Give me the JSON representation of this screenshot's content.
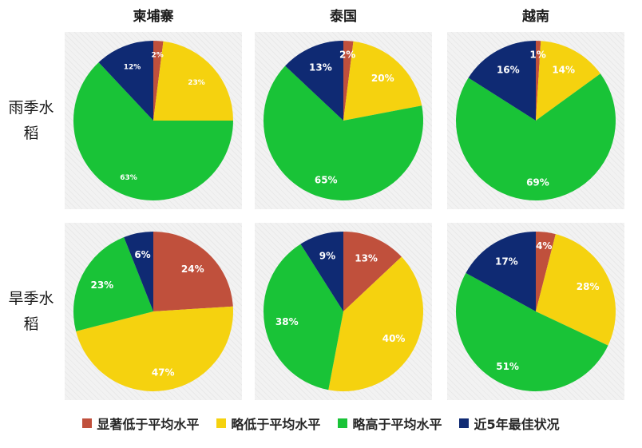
{
  "colors": {
    "significantly_below": "#c0503c",
    "slightly_below": "#f5d20f",
    "slightly_above": "#19c337",
    "best_5yr": "#0f2a73"
  },
  "legend": [
    "显著低于平均水平",
    "略低于平均水平",
    "略高于平均水平",
    "近5年最佳状况"
  ],
  "columns": [
    "柬埔寨",
    "泰国",
    "越南"
  ],
  "rows": [
    "雨季水稻",
    "旱季水稻"
  ],
  "chart_data": [
    {
      "type": "pie",
      "country": "柬埔寨",
      "season": "雨季水稻",
      "labels": [
        "显著低于平均水平",
        "略低于平均水平",
        "略高于平均水平",
        "近5年最佳状况"
      ],
      "values": [
        2,
        23,
        63,
        12
      ]
    },
    {
      "type": "pie",
      "country": "泰国",
      "season": "雨季水稻",
      "labels": [
        "显著低于平均水平",
        "略低于平均水平",
        "略高于平均水平",
        "近5年最佳状况"
      ],
      "values": [
        2,
        20,
        65,
        13
      ]
    },
    {
      "type": "pie",
      "country": "越南",
      "season": "雨季水稻",
      "labels": [
        "显著低于平均水平",
        "略低于平均水平",
        "略高于平均水平",
        "近5年最佳状况"
      ],
      "values": [
        1,
        14,
        69,
        16
      ]
    },
    {
      "type": "pie",
      "country": "柬埔寨",
      "season": "旱季水稻",
      "labels": [
        "显著低于平均水平",
        "略低于平均水平",
        "略高于平均水平",
        "近5年最佳状况"
      ],
      "values": [
        24,
        47,
        23,
        6
      ]
    },
    {
      "type": "pie",
      "country": "泰国",
      "season": "旱季水稻",
      "labels": [
        "显著低于平均水平",
        "略低于平均水平",
        "略高于平均水平",
        "近5年最佳状况"
      ],
      "values": [
        13,
        40,
        38,
        9
      ]
    },
    {
      "type": "pie",
      "country": "越南",
      "season": "旱季水稻",
      "labels": [
        "显著低于平均水平",
        "略低于平均水平",
        "略高于平均水平",
        "近5年最佳状况"
      ],
      "values": [
        4,
        28,
        51,
        17
      ]
    }
  ]
}
